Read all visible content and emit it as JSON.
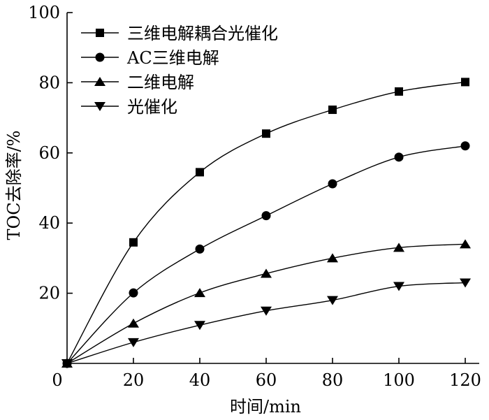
{
  "chart_data": {
    "type": "line",
    "xlabel": "时间/min",
    "ylabel": "TOC去除率/%",
    "xlim": [
      0,
      120
    ],
    "ylim": [
      0,
      100
    ],
    "xticks": [
      0,
      20,
      40,
      60,
      80,
      100,
      120
    ],
    "yticks": [
      20,
      40,
      60,
      80,
      100
    ],
    "x_origin_label": "0",
    "grid": false,
    "legend_position": "top-left",
    "x": [
      0,
      20,
      40,
      60,
      80,
      100,
      120
    ],
    "series": [
      {
        "name": "三维电解耦合光催化",
        "marker": "square",
        "values": [
          0,
          34.5,
          54.5,
          65.5,
          72.3,
          77.5,
          80.2
        ]
      },
      {
        "name": "AC三维电解",
        "marker": "circle",
        "values": [
          0,
          20.1,
          32.6,
          42.1,
          51.2,
          58.8,
          62.0
        ]
      },
      {
        "name": "二维电解",
        "marker": "triangle-up",
        "values": [
          0,
          11.4,
          20.1,
          25.6,
          30.0,
          33.0,
          34.0
        ]
      },
      {
        "name": "光催化",
        "marker": "triangle-down",
        "values": [
          0,
          6.0,
          10.9,
          15.0,
          18.0,
          22.0,
          23.0
        ]
      }
    ]
  }
}
